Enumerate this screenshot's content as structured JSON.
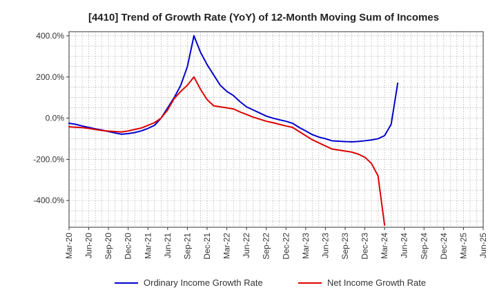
{
  "chart_data": {
    "type": "line",
    "title": "[4410]  Trend of Growth Rate (YoY) of 12-Month Moving Sum of Incomes",
    "xlabel": "",
    "ylabel": "",
    "ylim": [
      -530,
      420
    ],
    "y_ticks": [
      400,
      200,
      0,
      -200,
      -400
    ],
    "y_tick_labels": [
      "400.0%",
      "200.0%",
      "0.0%",
      "-200.0%",
      "-400.0%"
    ],
    "x_tick_labels": [
      "Mar-20",
      "Jun-20",
      "Sep-20",
      "Dec-20",
      "Mar-21",
      "Jun-21",
      "Sep-21",
      "Dec-21",
      "Mar-22",
      "Jun-22",
      "Sep-22",
      "Dec-22",
      "Mar-23",
      "Jun-23",
      "Sep-23",
      "Dec-23",
      "Mar-24",
      "Jun-24",
      "Sep-24",
      "Dec-24",
      "Mar-25",
      "Jun-25"
    ],
    "grid": true,
    "legend_position": "bottom",
    "series": [
      {
        "name": "Ordinary Income Growth Rate",
        "color": "#0000cc",
        "values": [
          -25,
          -30,
          -38,
          -45,
          -52,
          -58,
          -65,
          -72,
          -78,
          -75,
          -70,
          -62,
          -50,
          -35,
          0,
          50,
          100,
          160,
          250,
          400,
          320,
          260,
          210,
          160,
          130,
          110,
          80,
          55,
          40,
          25,
          10,
          0,
          -8,
          -15,
          -25,
          -45,
          -62,
          -80,
          -92,
          -100,
          -110,
          -112,
          -114,
          -115,
          -113,
          -110,
          -106,
          -100,
          -85,
          -30,
          170
        ]
      },
      {
        "name": "Net Income Growth Rate",
        "color": "#dd0000",
        "values": [
          -42,
          -44,
          -46,
          -50,
          -55,
          -60,
          -63,
          -65,
          -67,
          -62,
          -55,
          -48,
          -35,
          -22,
          0,
          40,
          95,
          130,
          160,
          200,
          140,
          90,
          60,
          55,
          50,
          45,
          30,
          18,
          5,
          -5,
          -15,
          -22,
          -30,
          -38,
          -45,
          -65,
          -85,
          -105,
          -120,
          -135,
          -150,
          -155,
          -160,
          -165,
          -175,
          -190,
          -220,
          -280,
          -520
        ]
      }
    ]
  }
}
